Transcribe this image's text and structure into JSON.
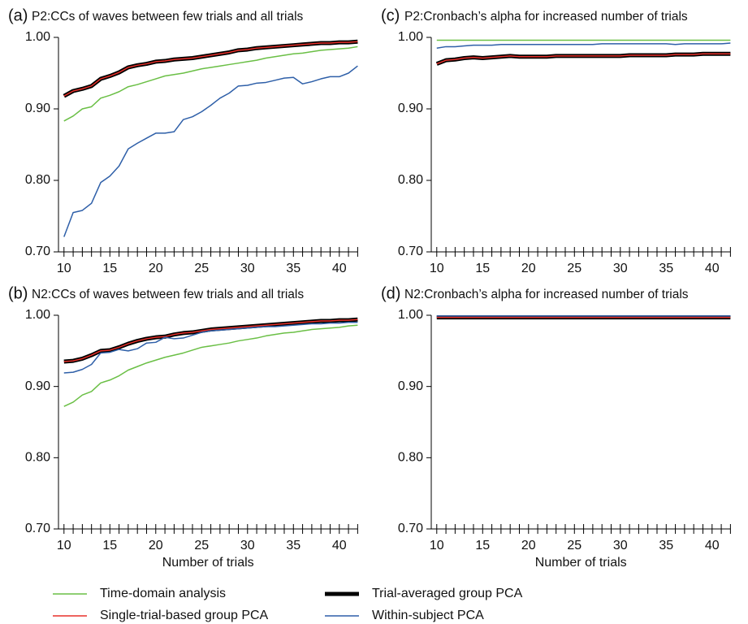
{
  "chart_data": [
    {
      "type": "line",
      "label": "(a)",
      "title": "P2:CCs of waves between few trials and all trials",
      "x": [
        10,
        11,
        12,
        13,
        14,
        15,
        16,
        17,
        18,
        19,
        20,
        21,
        22,
        23,
        24,
        25,
        26,
        27,
        28,
        29,
        30,
        31,
        32,
        33,
        34,
        35,
        36,
        37,
        38,
        39,
        40,
        41,
        42
      ],
      "xlim": [
        9.4,
        42
      ],
      "xticks": [
        10,
        15,
        20,
        25,
        30,
        35,
        40
      ],
      "xminorticks": [
        10,
        11,
        12,
        13,
        14,
        15,
        16,
        17,
        18,
        19,
        20,
        21,
        22,
        23,
        24,
        25,
        26,
        27,
        28,
        29,
        30,
        31,
        32,
        33,
        34,
        35,
        36,
        37,
        38,
        39,
        40,
        41,
        42
      ],
      "ylim": [
        0.7,
        1.0
      ],
      "yticks": [
        {
          "value": 0.7,
          "label": "0.70"
        },
        {
          "value": 0.8,
          "label": "0.80"
        },
        {
          "value": 0.9,
          "label": "0.90"
        },
        {
          "value": 1.0,
          "label": "1.00"
        }
      ],
      "series": [
        {
          "name": "Time-domain analysis",
          "color": "#6abf45",
          "line_width": 1.5,
          "values": [
            0.883,
            0.89,
            0.9,
            0.903,
            0.915,
            0.919,
            0.924,
            0.931,
            0.934,
            0.938,
            0.942,
            0.946,
            0.948,
            0.95,
            0.953,
            0.956,
            0.958,
            0.96,
            0.962,
            0.964,
            0.966,
            0.968,
            0.971,
            0.973,
            0.975,
            0.977,
            0.978,
            0.98,
            0.982,
            0.983,
            0.984,
            0.985,
            0.987
          ]
        },
        {
          "name": "Trial-averaged group PCA",
          "color": "#000000",
          "line_width": 5,
          "values": [
            0.918,
            0.925,
            0.928,
            0.932,
            0.942,
            0.946,
            0.951,
            0.958,
            0.961,
            0.963,
            0.966,
            0.967,
            0.969,
            0.97,
            0.971,
            0.973,
            0.975,
            0.977,
            0.979,
            0.982,
            0.983,
            0.985,
            0.986,
            0.987,
            0.988,
            0.989,
            0.99,
            0.991,
            0.992,
            0.992,
            0.993,
            0.993,
            0.994
          ]
        },
        {
          "name": "Single-trial-based group PCA",
          "color": "#e8302a",
          "line_width": 1.5,
          "values": [
            0.918,
            0.925,
            0.928,
            0.932,
            0.942,
            0.946,
            0.951,
            0.958,
            0.961,
            0.963,
            0.966,
            0.967,
            0.969,
            0.97,
            0.971,
            0.973,
            0.975,
            0.977,
            0.979,
            0.982,
            0.983,
            0.985,
            0.986,
            0.987,
            0.988,
            0.989,
            0.99,
            0.991,
            0.992,
            0.992,
            0.993,
            0.993,
            0.994
          ]
        },
        {
          "name": "Within-subject PCA",
          "color": "#2e5fa8",
          "line_width": 1.5,
          "values": [
            0.721,
            0.755,
            0.758,
            0.768,
            0.797,
            0.806,
            0.82,
            0.844,
            0.852,
            0.859,
            0.866,
            0.866,
            0.868,
            0.885,
            0.889,
            0.896,
            0.905,
            0.915,
            0.922,
            0.932,
            0.933,
            0.936,
            0.937,
            0.94,
            0.943,
            0.944,
            0.935,
            0.938,
            0.942,
            0.945,
            0.945,
            0.95,
            0.96
          ]
        }
      ]
    },
    {
      "type": "line",
      "label": "(b)",
      "title": "N2:CCs of waves between few trials and all trials",
      "x_label": "Number of trials",
      "x": [
        10,
        11,
        12,
        13,
        14,
        15,
        16,
        17,
        18,
        19,
        20,
        21,
        22,
        23,
        24,
        25,
        26,
        27,
        28,
        29,
        30,
        31,
        32,
        33,
        34,
        35,
        36,
        37,
        38,
        39,
        40,
        41,
        42
      ],
      "xlim": [
        9.4,
        42
      ],
      "xticks": [
        10,
        15,
        20,
        25,
        30,
        35,
        40
      ],
      "xminorticks": [
        10,
        11,
        12,
        13,
        14,
        15,
        16,
        17,
        18,
        19,
        20,
        21,
        22,
        23,
        24,
        25,
        26,
        27,
        28,
        29,
        30,
        31,
        32,
        33,
        34,
        35,
        36,
        37,
        38,
        39,
        40,
        41,
        42
      ],
      "ylim": [
        0.7,
        1.0
      ],
      "yticks": [
        {
          "value": 0.7,
          "label": "0.70"
        },
        {
          "value": 0.8,
          "label": "0.80"
        },
        {
          "value": 0.9,
          "label": "0.90"
        },
        {
          "value": 1.0,
          "label": "1.00"
        }
      ],
      "series": [
        {
          "color": "#6abf45",
          "line_width": 1.5,
          "values": [
            0.872,
            0.878,
            0.888,
            0.893,
            0.905,
            0.909,
            0.915,
            0.923,
            0.928,
            0.933,
            0.937,
            0.941,
            0.944,
            0.947,
            0.951,
            0.955,
            0.957,
            0.959,
            0.961,
            0.964,
            0.966,
            0.968,
            0.971,
            0.973,
            0.975,
            0.976,
            0.978,
            0.98,
            0.981,
            0.982,
            0.983,
            0.985,
            0.986
          ]
        },
        {
          "color": "#000000",
          "line_width": 5,
          "values": [
            0.935,
            0.936,
            0.939,
            0.944,
            0.95,
            0.951,
            0.955,
            0.96,
            0.964,
            0.967,
            0.969,
            0.97,
            0.973,
            0.975,
            0.976,
            0.978,
            0.98,
            0.981,
            0.982,
            0.983,
            0.984,
            0.985,
            0.986,
            0.987,
            0.988,
            0.989,
            0.99,
            0.991,
            0.992,
            0.992,
            0.993,
            0.993,
            0.994
          ]
        },
        {
          "color": "#e8302a",
          "line_width": 1.5,
          "values": [
            0.935,
            0.936,
            0.939,
            0.944,
            0.95,
            0.951,
            0.955,
            0.96,
            0.964,
            0.967,
            0.969,
            0.97,
            0.973,
            0.975,
            0.976,
            0.978,
            0.98,
            0.981,
            0.982,
            0.983,
            0.984,
            0.985,
            0.986,
            0.987,
            0.988,
            0.989,
            0.99,
            0.991,
            0.992,
            0.992,
            0.993,
            0.993,
            0.994
          ]
        },
        {
          "color": "#2e5fa8",
          "line_width": 1.5,
          "values": [
            0.919,
            0.92,
            0.924,
            0.931,
            0.947,
            0.948,
            0.952,
            0.95,
            0.953,
            0.961,
            0.962,
            0.969,
            0.967,
            0.968,
            0.972,
            0.976,
            0.978,
            0.979,
            0.98,
            0.981,
            0.982,
            0.983,
            0.984,
            0.984,
            0.985,
            0.986,
            0.987,
            0.988,
            0.988,
            0.989,
            0.989,
            0.99,
            0.99
          ]
        }
      ]
    },
    {
      "type": "line",
      "label": "(c)",
      "title": "P2:Cronbach’s alpha for increased number of trials",
      "x": [
        10,
        11,
        12,
        13,
        14,
        15,
        16,
        17,
        18,
        19,
        20,
        21,
        22,
        23,
        24,
        25,
        26,
        27,
        28,
        29,
        30,
        31,
        32,
        33,
        34,
        35,
        36,
        37,
        38,
        39,
        40,
        41,
        42
      ],
      "xlim": [
        9.4,
        42
      ],
      "xticks": [
        10,
        15,
        20,
        25,
        30,
        35,
        40
      ],
      "xminorticks": [
        10,
        11,
        12,
        13,
        14,
        15,
        16,
        17,
        18,
        19,
        20,
        21,
        22,
        23,
        24,
        25,
        26,
        27,
        28,
        29,
        30,
        31,
        32,
        33,
        34,
        35,
        36,
        37,
        38,
        39,
        40,
        41,
        42
      ],
      "ylim": [
        0.7,
        1.0
      ],
      "yticks": [
        {
          "value": 0.7,
          "label": "0.70"
        },
        {
          "value": 0.8,
          "label": "0.80"
        },
        {
          "value": 0.9,
          "label": "0.90"
        },
        {
          "value": 1.0,
          "label": "1.00"
        }
      ],
      "series": [
        {
          "color": "#6abf45",
          "line_width": 1.5,
          "values": [
            0.996,
            0.996,
            0.996,
            0.996,
            0.996,
            0.996,
            0.996,
            0.996,
            0.996,
            0.996,
            0.996,
            0.996,
            0.996,
            0.996,
            0.996,
            0.996,
            0.996,
            0.996,
            0.996,
            0.996,
            0.996,
            0.996,
            0.996,
            0.996,
            0.996,
            0.996,
            0.996,
            0.996,
            0.996,
            0.996,
            0.996,
            0.996,
            0.996
          ]
        },
        {
          "color": "#000000",
          "line_width": 5,
          "values": [
            0.963,
            0.968,
            0.969,
            0.971,
            0.972,
            0.971,
            0.972,
            0.973,
            0.974,
            0.973,
            0.973,
            0.973,
            0.973,
            0.974,
            0.974,
            0.974,
            0.974,
            0.974,
            0.974,
            0.974,
            0.974,
            0.975,
            0.975,
            0.975,
            0.975,
            0.975,
            0.976,
            0.976,
            0.976,
            0.977,
            0.977,
            0.977,
            0.977
          ]
        },
        {
          "color": "#e8302a",
          "line_width": 1.5,
          "values": [
            0.963,
            0.968,
            0.969,
            0.971,
            0.972,
            0.971,
            0.972,
            0.973,
            0.974,
            0.973,
            0.973,
            0.973,
            0.973,
            0.974,
            0.974,
            0.974,
            0.974,
            0.974,
            0.974,
            0.974,
            0.974,
            0.975,
            0.975,
            0.975,
            0.975,
            0.975,
            0.976,
            0.976,
            0.976,
            0.977,
            0.977,
            0.977,
            0.977
          ]
        },
        {
          "color": "#2e5fa8",
          "line_width": 1.5,
          "values": [
            0.985,
            0.987,
            0.987,
            0.988,
            0.989,
            0.989,
            0.989,
            0.99,
            0.99,
            0.99,
            0.99,
            0.99,
            0.99,
            0.99,
            0.99,
            0.99,
            0.99,
            0.99,
            0.991,
            0.991,
            0.991,
            0.991,
            0.991,
            0.991,
            0.991,
            0.991,
            0.99,
            0.991,
            0.991,
            0.991,
            0.991,
            0.991,
            0.992
          ]
        }
      ]
    },
    {
      "type": "line",
      "label": "(d)",
      "title": "N2:Cronbach’s alpha for increased number of trials",
      "x_label": "Number of trials",
      "x": [
        10,
        11,
        12,
        13,
        14,
        15,
        16,
        17,
        18,
        19,
        20,
        21,
        22,
        23,
        24,
        25,
        26,
        27,
        28,
        29,
        30,
        31,
        32,
        33,
        34,
        35,
        36,
        37,
        38,
        39,
        40,
        41,
        42
      ],
      "xlim": [
        9.4,
        42
      ],
      "xticks": [
        10,
        15,
        20,
        25,
        30,
        35,
        40
      ],
      "xminorticks": [
        10,
        11,
        12,
        13,
        14,
        15,
        16,
        17,
        18,
        19,
        20,
        21,
        22,
        23,
        24,
        25,
        26,
        27,
        28,
        29,
        30,
        31,
        32,
        33,
        34,
        35,
        36,
        37,
        38,
        39,
        40,
        41,
        42
      ],
      "ylim": [
        0.7,
        1.0
      ],
      "yticks": [
        {
          "value": 0.7,
          "label": "0.70"
        },
        {
          "value": 0.8,
          "label": "0.80"
        },
        {
          "value": 0.9,
          "label": "0.90"
        },
        {
          "value": 1.0,
          "label": "1.00"
        }
      ],
      "series": [
        {
          "color": "#6abf45",
          "line_width": 1.5,
          "values": [
            0.998,
            0.998,
            0.998,
            0.998,
            0.998,
            0.998,
            0.998,
            0.998,
            0.998,
            0.998,
            0.998,
            0.998,
            0.998,
            0.998,
            0.998,
            0.998,
            0.998,
            0.998,
            0.998,
            0.998,
            0.998,
            0.998,
            0.998,
            0.998,
            0.998,
            0.998,
            0.998,
            0.998,
            0.998,
            0.998,
            0.998,
            0.998,
            0.998
          ]
        },
        {
          "color": "#000000",
          "line_width": 5,
          "values": [
            0.997,
            0.997,
            0.997,
            0.997,
            0.997,
            0.997,
            0.997,
            0.997,
            0.997,
            0.997,
            0.997,
            0.997,
            0.997,
            0.997,
            0.997,
            0.997,
            0.997,
            0.997,
            0.997,
            0.997,
            0.997,
            0.997,
            0.997,
            0.997,
            0.997,
            0.997,
            0.997,
            0.997,
            0.997,
            0.997,
            0.997,
            0.997,
            0.997
          ]
        },
        {
          "color": "#e8302a",
          "line_width": 1.5,
          "values": [
            0.997,
            0.997,
            0.997,
            0.997,
            0.997,
            0.997,
            0.997,
            0.997,
            0.997,
            0.997,
            0.997,
            0.997,
            0.997,
            0.997,
            0.997,
            0.997,
            0.997,
            0.997,
            0.997,
            0.997,
            0.997,
            0.997,
            0.997,
            0.997,
            0.997,
            0.997,
            0.997,
            0.997,
            0.997,
            0.997,
            0.997,
            0.997,
            0.997
          ]
        },
        {
          "color": "#2e5fa8",
          "line_width": 1.5,
          "values": [
            0.999,
            0.999,
            0.999,
            0.999,
            0.999,
            0.999,
            0.999,
            0.999,
            0.999,
            0.999,
            0.999,
            0.999,
            0.999,
            0.999,
            0.999,
            0.999,
            0.999,
            0.999,
            0.999,
            0.999,
            0.999,
            0.999,
            0.999,
            0.999,
            0.999,
            0.999,
            0.999,
            0.999,
            0.999,
            0.999,
            0.999,
            0.999,
            0.999
          ]
        }
      ]
    }
  ]
}
